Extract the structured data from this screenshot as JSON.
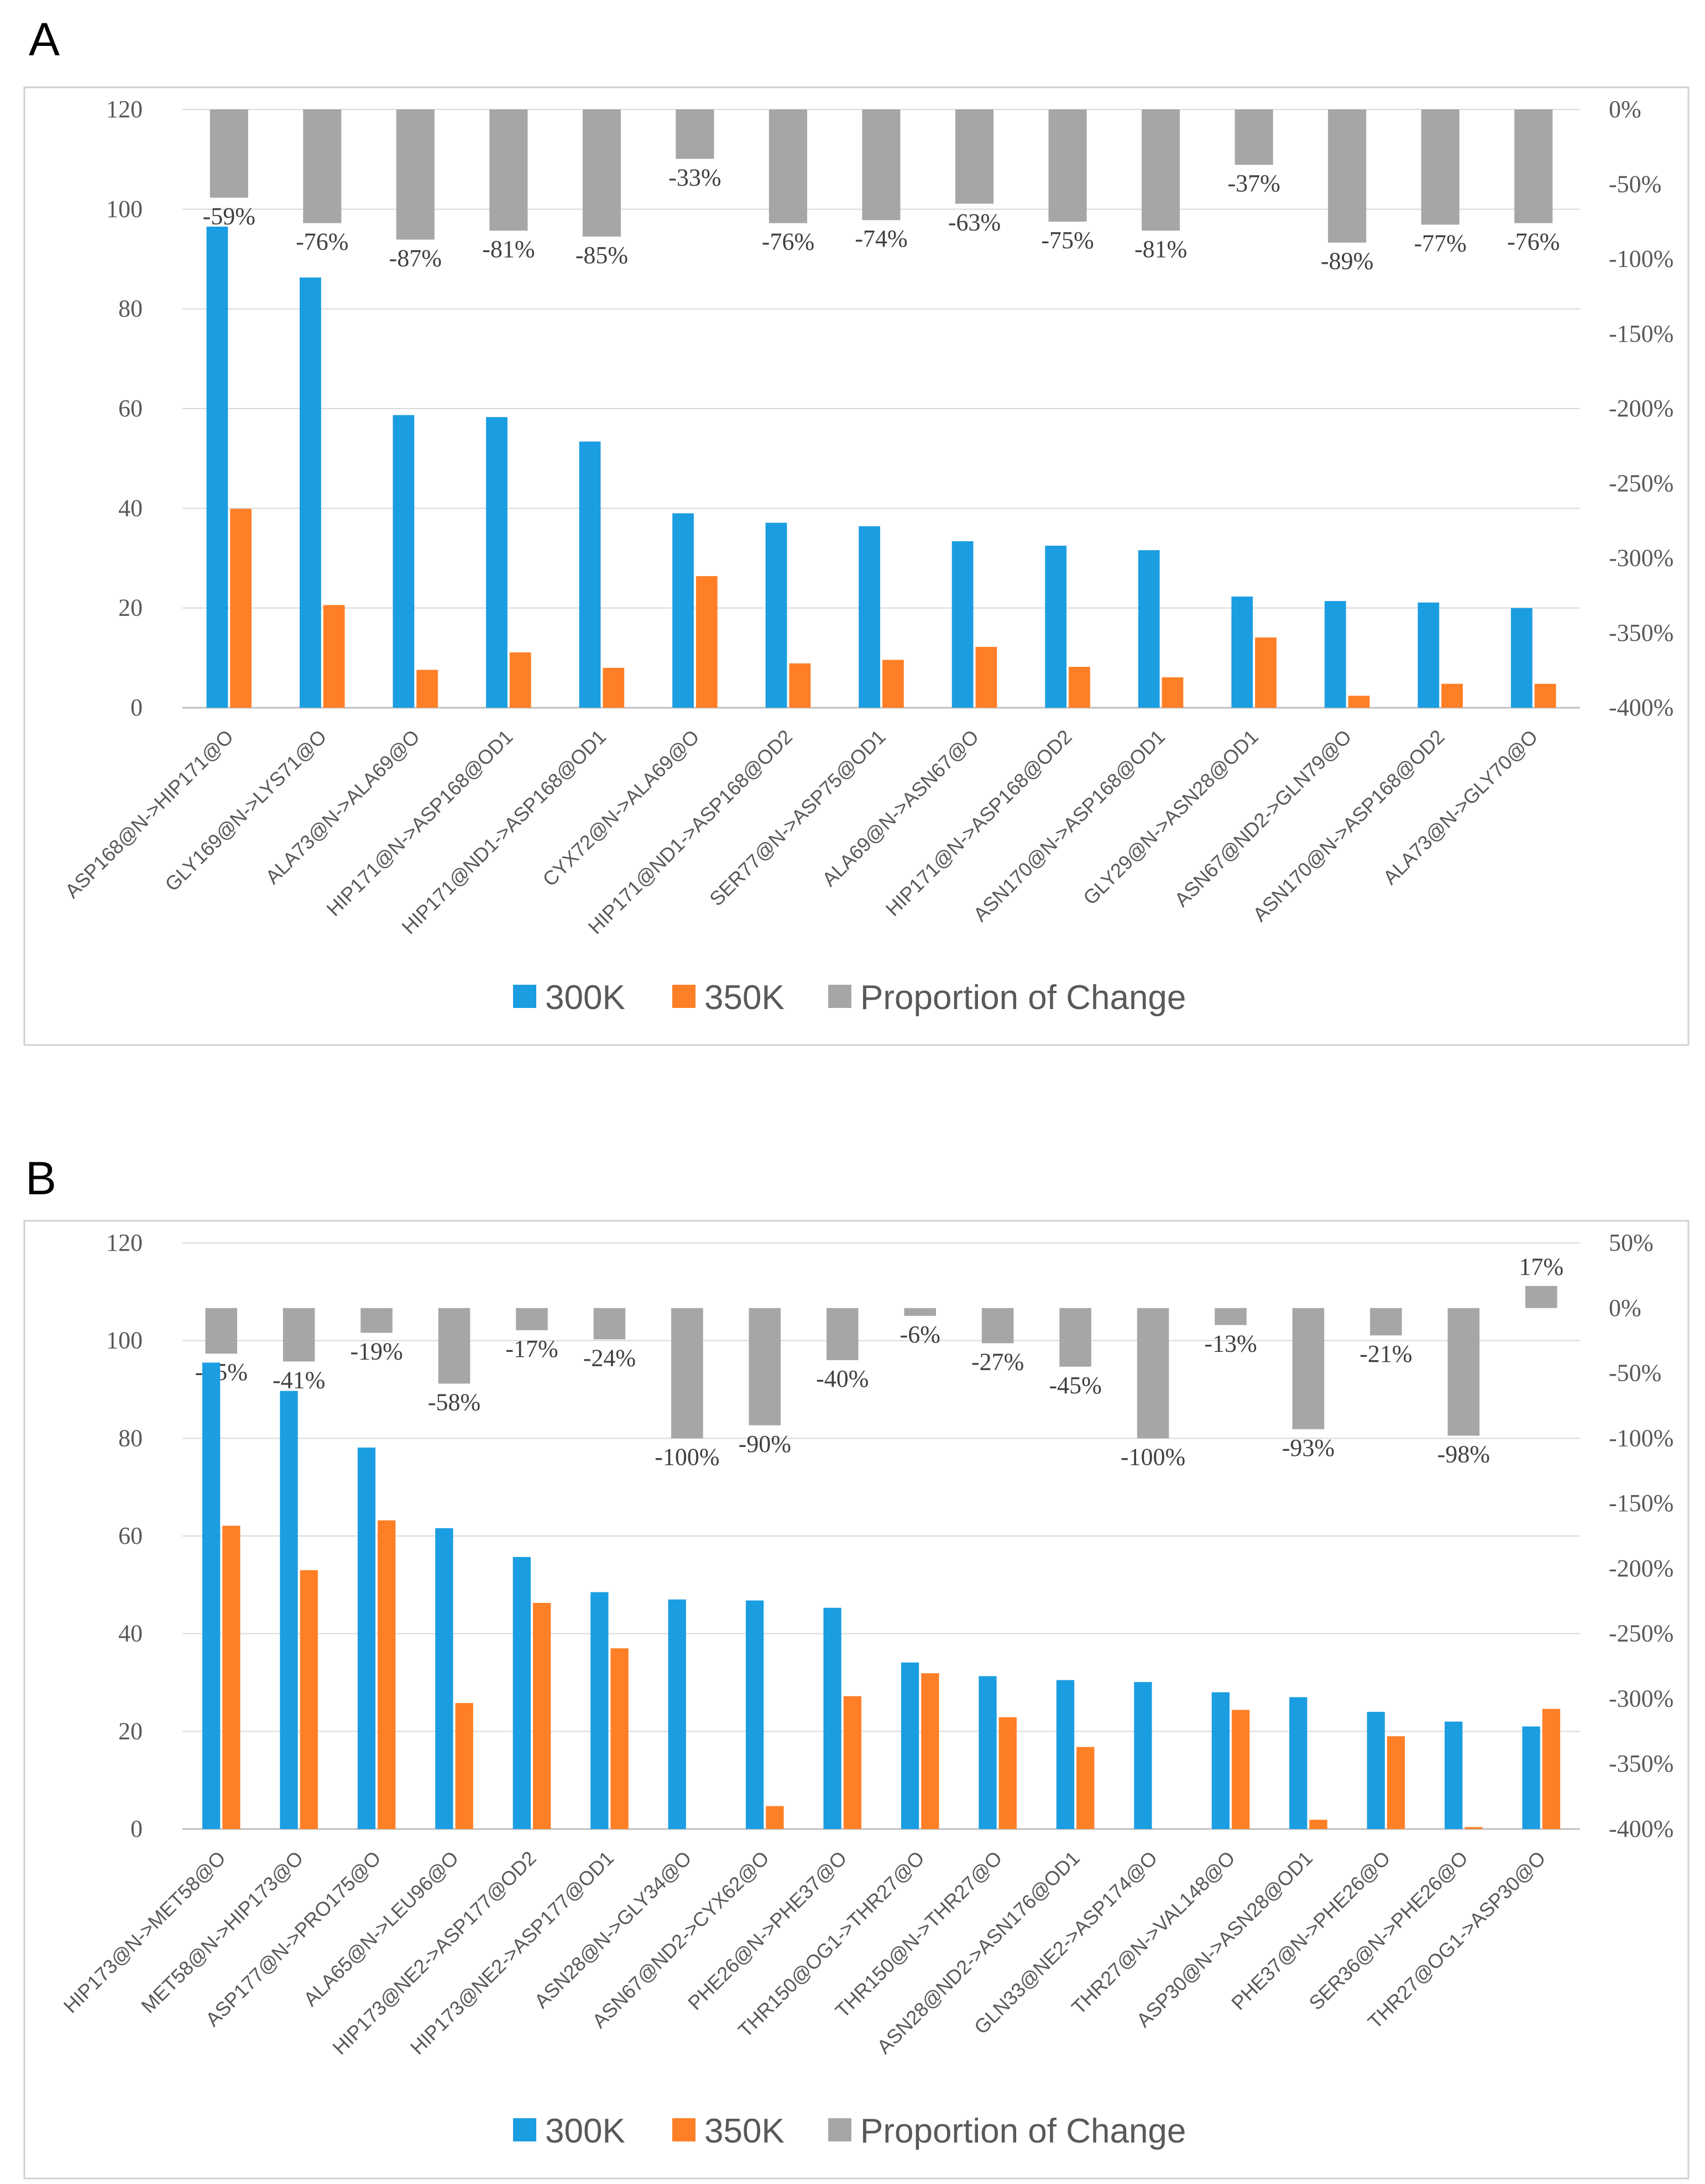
{
  "colors": {
    "s300": "#1b9de2",
    "s350": "#ff7f27",
    "prop": "#a6a6a6",
    "grid": "#d9d9d9",
    "axis": "#bfbfbf",
    "frame": "#d0d0d0"
  },
  "chart_data": [
    {
      "panel": "A",
      "type": "bar",
      "y_left": {
        "min": 0,
        "max": 120,
        "ticks": [
          "0",
          "20",
          "40",
          "60",
          "80",
          "100",
          "120"
        ]
      },
      "y_right": {
        "min": -400,
        "max": 0,
        "ticks": [
          "-400%",
          "-350%",
          "-300%",
          "-250%",
          "-200%",
          "-150%",
          "-100%",
          "-50%",
          "0%"
        ]
      },
      "categories": [
        "ASP168@N->HIP171@O",
        "GLY169@N->LYS71@O",
        "ALA73@N->ALA69@O",
        "HIP171@N->ASP168@OD1",
        "HIP171@ND1->ASP168@OD1",
        "CYX72@N->ALA69@O",
        "HIP171@ND1->ASP168@OD2",
        "SER77@N->ASP75@OD1",
        "ALA69@N->ASN67@O",
        "HIP171@N->ASP168@OD2",
        "ASN170@N->ASP168@OD1",
        "GLY29@N->ASN28@OD1",
        "ASN67@ND2->GLN79@O",
        "ASN170@N->ASP168@OD2",
        "ALA73@N->GLY70@O"
      ],
      "series": [
        {
          "name": "300K",
          "values": [
            96.5,
            86.3,
            58.7,
            58.3,
            53.4,
            39.0,
            37.1,
            36.4,
            33.4,
            32.5,
            31.6,
            22.3,
            21.4,
            21.1,
            20.0
          ]
        },
        {
          "name": "350K",
          "values": [
            39.9,
            20.6,
            7.6,
            11.1,
            8.0,
            26.4,
            8.9,
            9.6,
            12.2,
            8.2,
            6.1,
            14.1,
            2.4,
            4.8,
            4.8
          ]
        },
        {
          "name": "Proportion of Change",
          "values": [
            -59,
            -76,
            -87,
            -81,
            -85,
            -33,
            -76,
            -74,
            -63,
            -75,
            -81,
            -37,
            -89,
            -77,
            -76
          ]
        }
      ],
      "labels": [
        "-59%",
        "-76%",
        "-87%",
        "-81%",
        "-85%",
        "-33%",
        "-76%",
        "-74%",
        "-63%",
        "-75%",
        "-81%",
        "-37%",
        "-89%",
        "-77%",
        "-76%"
      ],
      "legend": [
        "300K",
        "350K",
        "Proportion of Change"
      ],
      "grid": true
    },
    {
      "panel": "B",
      "type": "bar",
      "y_left": {
        "min": 0,
        "max": 120,
        "ticks": [
          "0",
          "20",
          "40",
          "60",
          "80",
          "100",
          "120"
        ]
      },
      "y_right": {
        "min": -400,
        "max": 50,
        "ticks": [
          "-400%",
          "-350%",
          "-300%",
          "-250%",
          "-200%",
          "-150%",
          "-100%",
          "-50%",
          "0%",
          "50%"
        ]
      },
      "categories": [
        "HIP173@N->MET58@O",
        "MET58@N->HIP173@O",
        "ASP177@N->PRO175@O",
        "ALA65@N->LEU96@O",
        "HIP173@NE2->ASP177@OD2",
        "HIP173@NE2->ASP177@OD1",
        "ASN28@N->GLY34@O",
        "ASN67@ND2->CYX62@O",
        "PHE26@N->PHE37@O",
        "THR150@OG1->THR27@O",
        "THR150@N->THR27@O",
        "ASN28@ND2->ASN176@OD1",
        "GLN33@NE2->ASP174@O",
        "THR27@N->VAL148@O",
        "ASP30@N->ASN28@OD1",
        "PHE37@N->PHE26@O",
        "SER36@N->PHE26@O",
        "THR27@OG1->ASP30@O"
      ],
      "series": [
        {
          "name": "300K",
          "values": [
            95.5,
            89.7,
            78.1,
            61.6,
            55.7,
            48.5,
            47.0,
            46.8,
            45.3,
            34.1,
            31.3,
            30.5,
            30.1,
            28.0,
            27.0,
            24.0,
            22.0,
            21.0
          ]
        },
        {
          "name": "350K",
          "values": [
            62.1,
            53.0,
            63.2,
            25.8,
            46.3,
            37.0,
            0,
            4.7,
            27.2,
            31.9,
            22.9,
            16.8,
            0,
            24.4,
            1.9,
            19.0,
            0.4,
            24.6
          ]
        },
        {
          "name": "Proportion of Change",
          "values": [
            -35,
            -41,
            -19,
            -58,
            -17,
            -24,
            -100,
            -90,
            -40,
            -6,
            -27,
            -45,
            -100,
            -13,
            -93,
            -21,
            -98,
            17
          ]
        }
      ],
      "labels": [
        "-35%",
        "-41%",
        "-19%",
        "-58%",
        "-17%",
        "-24%",
        "-100%",
        "-90%",
        "-40%",
        "-6%",
        "-27%",
        "-45%",
        "-100%",
        "-13%",
        "-93%",
        "-21%",
        "-98%",
        "17%"
      ],
      "legend": [
        "300K",
        "350K",
        "Proportion of Change"
      ],
      "grid": true
    }
  ]
}
